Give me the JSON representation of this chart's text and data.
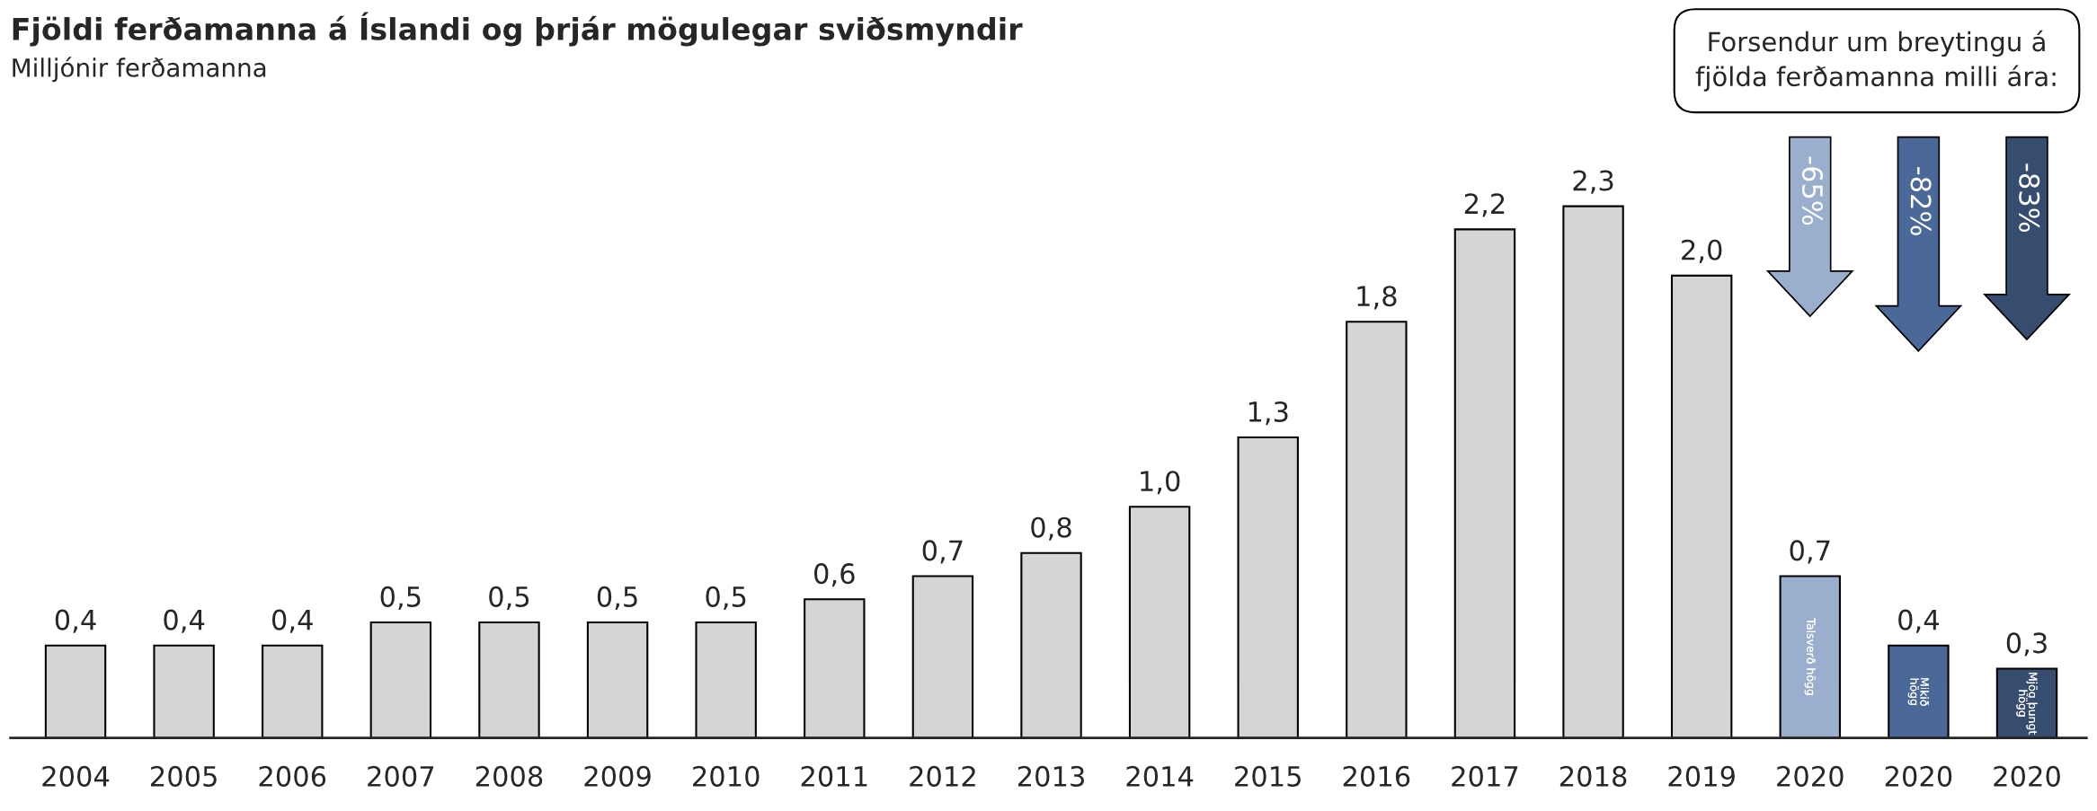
{
  "chart_data": {
    "type": "bar",
    "title": "Fjöldi ferðamanna á Íslandi og þrjár mögulegar sviðsmyndir",
    "subtitle": "Milljónir ferðamanna",
    "categories": [
      "2004",
      "2005",
      "2006",
      "2007",
      "2008",
      "2009",
      "2010",
      "2011",
      "2012",
      "2013",
      "2014",
      "2015",
      "2016",
      "2017",
      "2018",
      "2019",
      "2020",
      "2020",
      "2020"
    ],
    "values": [
      0.4,
      0.4,
      0.4,
      0.5,
      0.5,
      0.5,
      0.5,
      0.6,
      0.7,
      0.8,
      1.0,
      1.3,
      1.8,
      2.2,
      2.3,
      2.0,
      0.7,
      0.4,
      0.3
    ],
    "colors": [
      "#d4d5d7",
      "#d4d5d7",
      "#d4d5d7",
      "#d4d5d7",
      "#d4d5d7",
      "#d4d5d7",
      "#d4d5d7",
      "#d4d5d7",
      "#d4d5d7",
      "#d4d5d7",
      "#d4d5d7",
      "#d4d5d7",
      "#d4d5d7",
      "#d4d5d7",
      "#d4d5d7",
      "#d4d5d7",
      "#9aaecd",
      "#4a6898",
      "#364d6f"
    ],
    "value_labels": [
      "0,4",
      "0,4",
      "0,4",
      "0,5",
      "0,5",
      "0,5",
      "0,5",
      "0,6",
      "0,7",
      "0,8",
      "1,0",
      "1,3",
      "1,8",
      "2,2",
      "2,3",
      "2,0",
      "0,7",
      "0,4",
      "0,3"
    ],
    "annotations": [
      "Forsendur um breytingu á\nfjölda ferðamanna milli ára:",
      "-65%",
      "-82%",
      "-83%",
      "Talsverð högg",
      "Mikið\nhögg",
      "Mjög þungt\nhögg"
    ]
  }
}
